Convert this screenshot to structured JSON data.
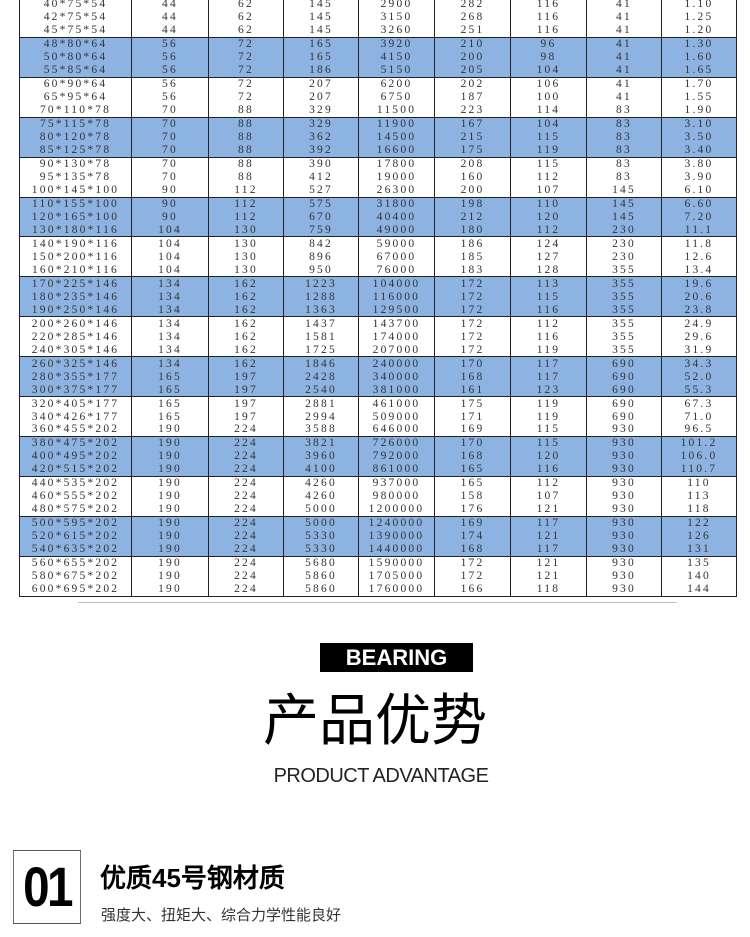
{
  "colors": {
    "band": "#8db3e2",
    "border": "#222222"
  },
  "spec_table": {
    "rows": [
      [
        "40*75*54",
        "44",
        "62",
        "145",
        "2900",
        "282",
        "116",
        "41",
        "1.10"
      ],
      [
        "42*75*54",
        "44",
        "62",
        "145",
        "3150",
        "268",
        "116",
        "41",
        "1.25"
      ],
      [
        "45*75*54",
        "44",
        "62",
        "145",
        "3260",
        "251",
        "116",
        "41",
        "1.20"
      ],
      [
        "48*80*64",
        "56",
        "72",
        "165",
        "3920",
        "210",
        "96",
        "41",
        "1.30"
      ],
      [
        "50*80*64",
        "56",
        "72",
        "165",
        "4150",
        "200",
        "98",
        "41",
        "1.60"
      ],
      [
        "55*85*64",
        "56",
        "72",
        "186",
        "5150",
        "205",
        "104",
        "41",
        "1.65"
      ],
      [
        "60*90*64",
        "56",
        "72",
        "207",
        "6200",
        "202",
        "106",
        "41",
        "1.70"
      ],
      [
        "65*95*64",
        "56",
        "72",
        "207",
        "6750",
        "187",
        "100",
        "41",
        "1.55"
      ],
      [
        "70*110*78",
        "70",
        "88",
        "329",
        "11500",
        "223",
        "114",
        "83",
        "1.90"
      ],
      [
        "75*115*78",
        "70",
        "88",
        "329",
        "11900",
        "167",
        "104",
        "83",
        "3.10"
      ],
      [
        "80*120*78",
        "70",
        "88",
        "362",
        "14500",
        "215",
        "115",
        "83",
        "3.50"
      ],
      [
        "85*125*78",
        "70",
        "88",
        "392",
        "16600",
        "175",
        "119",
        "83",
        "3.40"
      ],
      [
        "90*130*78",
        "70",
        "88",
        "390",
        "17800",
        "208",
        "115",
        "83",
        "3.80"
      ],
      [
        "95*135*78",
        "70",
        "88",
        "412",
        "19000",
        "160",
        "112",
        "83",
        "3.90"
      ],
      [
        "100*145*100",
        "90",
        "112",
        "527",
        "26300",
        "200",
        "107",
        "145",
        "6.10"
      ],
      [
        "110*155*100",
        "90",
        "112",
        "575",
        "31800",
        "198",
        "110",
        "145",
        "6.60"
      ],
      [
        "120*165*100",
        "90",
        "112",
        "670",
        "40400",
        "212",
        "120",
        "145",
        "7.20"
      ],
      [
        "130*180*116",
        "104",
        "130",
        "759",
        "49000",
        "180",
        "112",
        "230",
        "11.1"
      ],
      [
        "140*190*116",
        "104",
        "130",
        "842",
        "59000",
        "186",
        "124",
        "230",
        "11.8"
      ],
      [
        "150*200*116",
        "104",
        "130",
        "896",
        "67000",
        "185",
        "127",
        "230",
        "12.6"
      ],
      [
        "160*210*116",
        "104",
        "130",
        "950",
        "76000",
        "183",
        "128",
        "355",
        "13.4"
      ],
      [
        "170*225*146",
        "134",
        "162",
        "1223",
        "104000",
        "172",
        "113",
        "355",
        "19.6"
      ],
      [
        "180*235*146",
        "134",
        "162",
        "1288",
        "116000",
        "172",
        "115",
        "355",
        "20.6"
      ],
      [
        "190*250*146",
        "134",
        "162",
        "1363",
        "129500",
        "172",
        "116",
        "355",
        "23.8"
      ],
      [
        "200*260*146",
        "134",
        "162",
        "1437",
        "143700",
        "172",
        "112",
        "355",
        "24.9"
      ],
      [
        "220*285*146",
        "134",
        "162",
        "1581",
        "174000",
        "172",
        "116",
        "355",
        "29.6"
      ],
      [
        "240*305*146",
        "134",
        "162",
        "1725",
        "207000",
        "172",
        "119",
        "355",
        "31.9"
      ],
      [
        "260*325*146",
        "134",
        "162",
        "1846",
        "240000",
        "170",
        "117",
        "690",
        "34.3"
      ],
      [
        "280*355*177",
        "165",
        "197",
        "2428",
        "340000",
        "168",
        "117",
        "690",
        "52.0"
      ],
      [
        "300*375*177",
        "165",
        "197",
        "2540",
        "381000",
        "161",
        "123",
        "690",
        "55.3"
      ],
      [
        "320*405*177",
        "165",
        "197",
        "2881",
        "461000",
        "175",
        "119",
        "690",
        "67.3"
      ],
      [
        "340*426*177",
        "165",
        "197",
        "2994",
        "509000",
        "171",
        "119",
        "690",
        "71.0"
      ],
      [
        "360*455*202",
        "190",
        "224",
        "3588",
        "646000",
        "169",
        "115",
        "930",
        "96.5"
      ],
      [
        "380*475*202",
        "190",
        "224",
        "3821",
        "726000",
        "170",
        "115",
        "930",
        "101.2"
      ],
      [
        "400*495*202",
        "190",
        "224",
        "3960",
        "792000",
        "168",
        "120",
        "930",
        "106.0"
      ],
      [
        "420*515*202",
        "190",
        "224",
        "4100",
        "861000",
        "165",
        "116",
        "930",
        "110.7"
      ],
      [
        "440*535*202",
        "190",
        "224",
        "4260",
        "937000",
        "165",
        "112",
        "930",
        "110"
      ],
      [
        "460*555*202",
        "190",
        "224",
        "4260",
        "980000",
        "158",
        "107",
        "930",
        "113"
      ],
      [
        "480*575*202",
        "190",
        "224",
        "5000",
        "1200000",
        "176",
        "121",
        "930",
        "118"
      ],
      [
        "500*595*202",
        "190",
        "224",
        "5000",
        "1240000",
        "169",
        "117",
        "930",
        "122"
      ],
      [
        "520*615*202",
        "190",
        "224",
        "5330",
        "1390000",
        "174",
        "121",
        "930",
        "126"
      ],
      [
        "540*635*202",
        "190",
        "224",
        "5330",
        "1440000",
        "168",
        "117",
        "930",
        "131"
      ],
      [
        "560*655*202",
        "190",
        "224",
        "5680",
        "1590000",
        "172",
        "121",
        "930",
        "135"
      ],
      [
        "580*675*202",
        "190",
        "224",
        "5860",
        "1705000",
        "172",
        "121",
        "930",
        "140"
      ],
      [
        "600*695*202",
        "190",
        "224",
        "5860",
        "1760000",
        "166",
        "118",
        "930",
        "144"
      ]
    ]
  },
  "section": {
    "badge": "BEARING",
    "title_cn": "产品优势",
    "title_en": "PRODUCT ADVANTAGE"
  },
  "feature": {
    "number": "01",
    "title": "优质45号钢材质",
    "subtitle": "强度大、扭矩大、综合力学性能良好"
  }
}
